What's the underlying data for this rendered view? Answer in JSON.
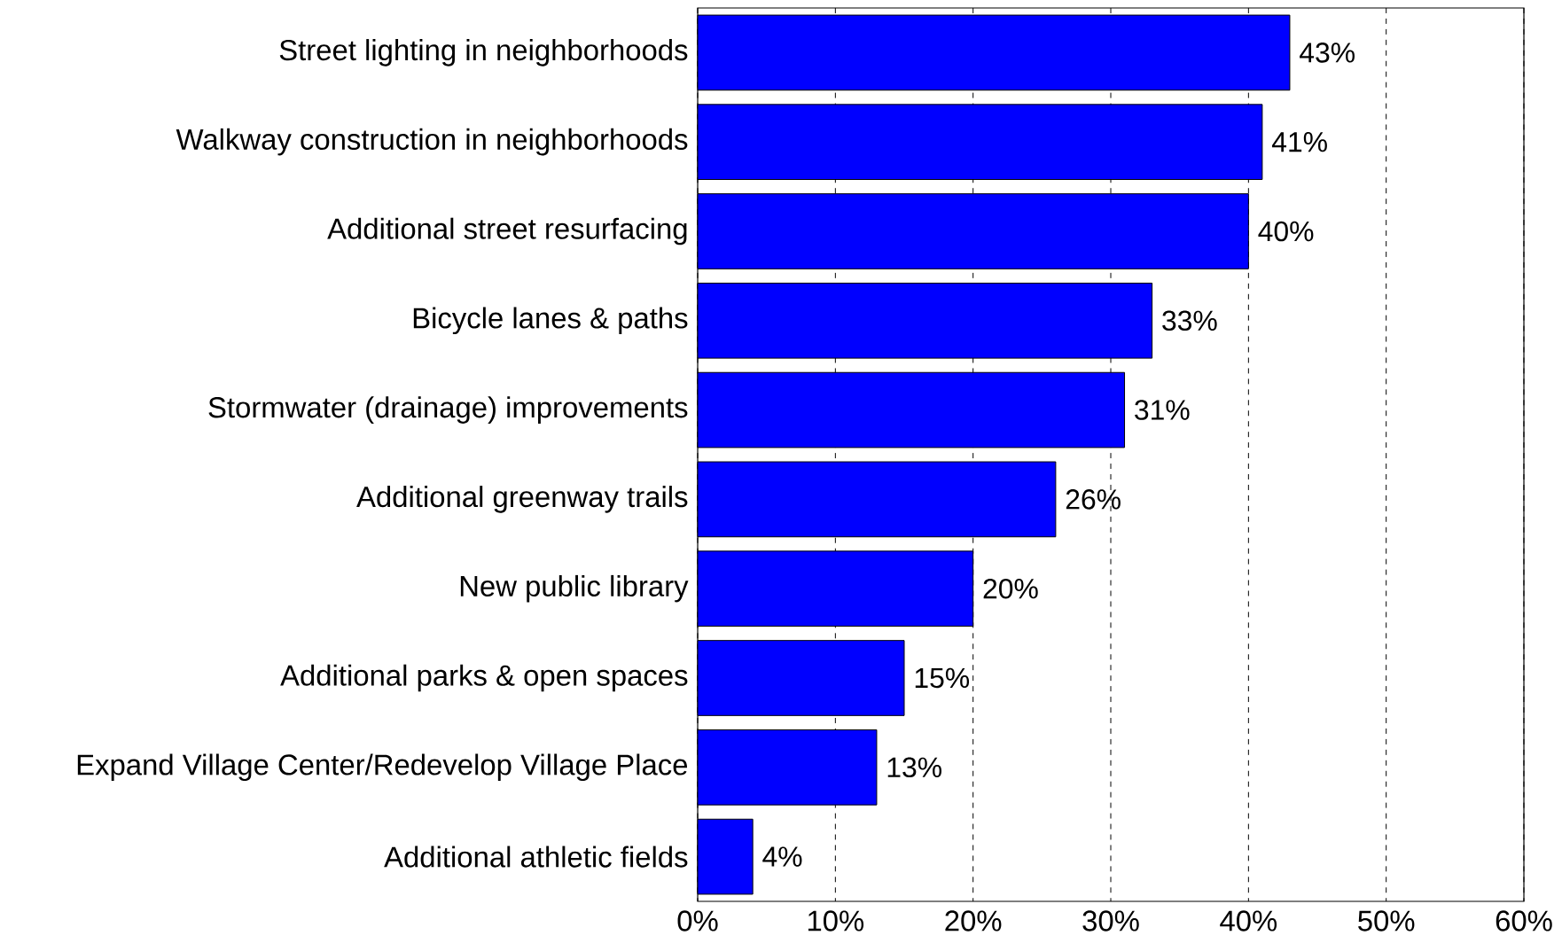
{
  "chart_data": {
    "type": "bar",
    "orientation": "horizontal",
    "categories": [
      "Street lighting in neighborhoods",
      "Walkway construction in neighborhoods",
      "Additional street resurfacing",
      "Bicycle lanes & paths",
      "Stormwater (drainage) improvements",
      "Additional greenway trails",
      "New public library",
      "Additional parks & open spaces",
      "Expand Village Center/Redevelop Village Place",
      "Additional athletic fields"
    ],
    "values": [
      43,
      41,
      40,
      33,
      31,
      26,
      20,
      15,
      13,
      4
    ],
    "value_labels": [
      "43%",
      "41%",
      "40%",
      "33%",
      "31%",
      "26%",
      "20%",
      "15%",
      "13%",
      "4%"
    ],
    "color": "#0000ff",
    "xlim": [
      0,
      60
    ],
    "xticks": [
      {
        "value": 0,
        "label": "0%"
      },
      {
        "value": 10,
        "label": "10%"
      },
      {
        "value": 20,
        "label": "20%"
      },
      {
        "value": 30,
        "label": "30%"
      },
      {
        "value": 40,
        "label": "40%"
      },
      {
        "value": 50,
        "label": "50%"
      },
      {
        "value": 60,
        "label": "60%"
      }
    ],
    "grid": "x"
  }
}
